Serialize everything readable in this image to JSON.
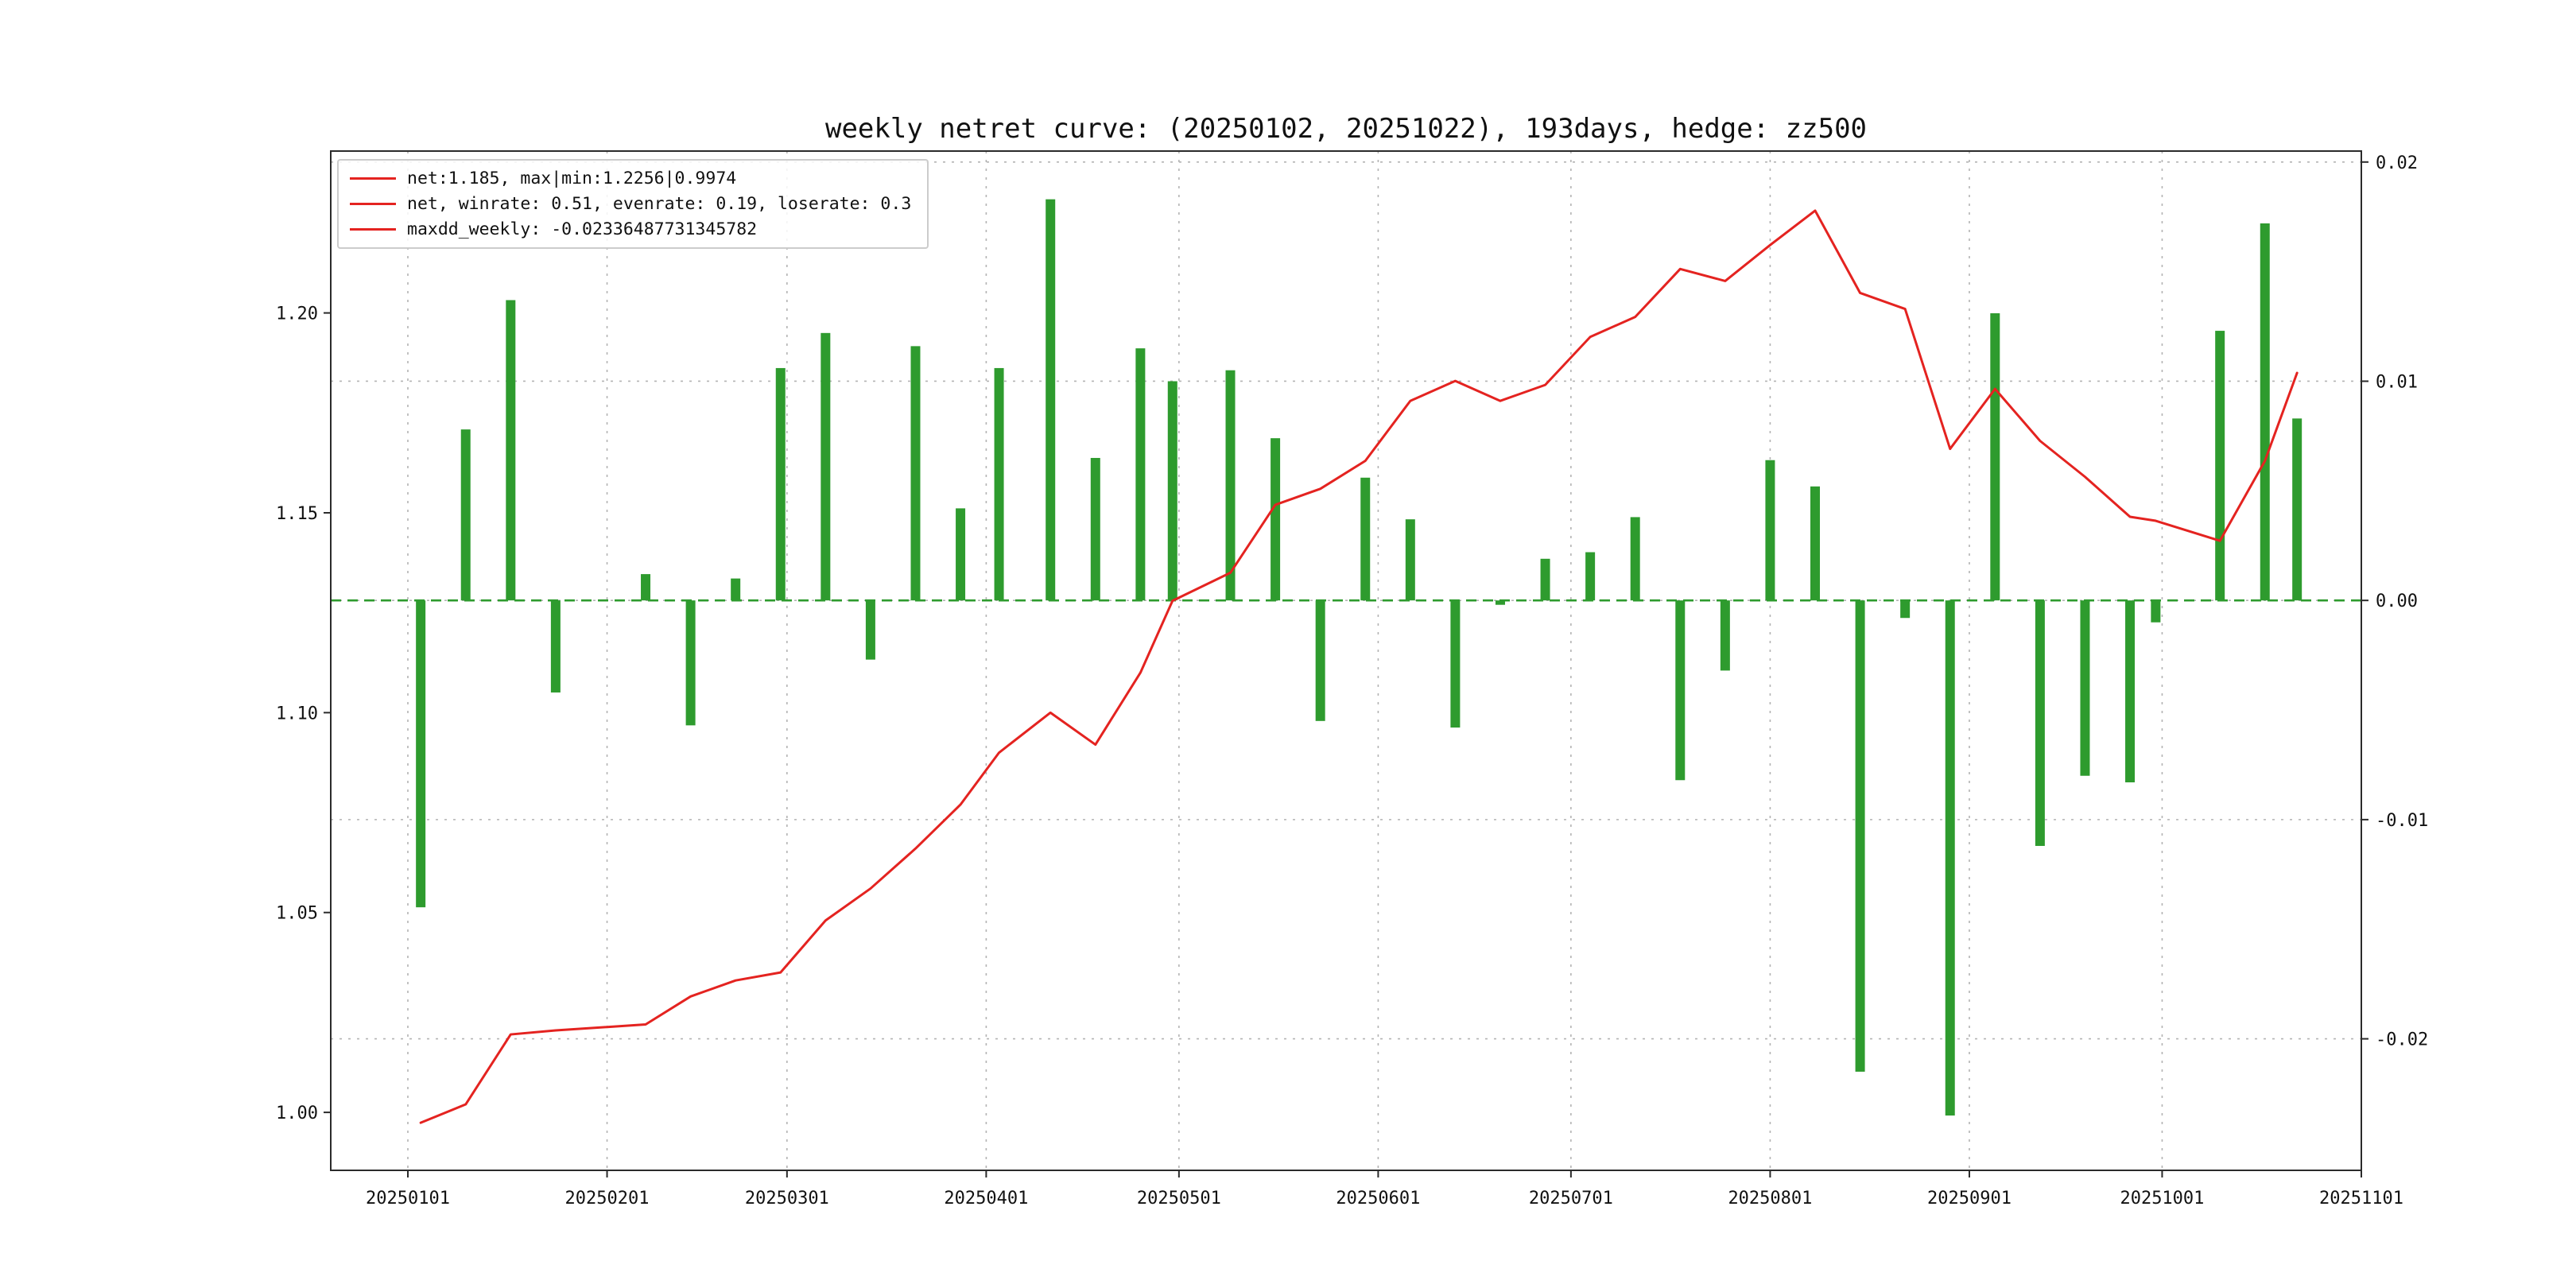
{
  "colors": {
    "line_red": "#e42320",
    "bar_green": "#2e9b2e",
    "zero_line_green": "#2e9b2e",
    "grid": "#b3b3b3",
    "spine": "#2b2b2b",
    "text": "#111111",
    "background": "#ffffff"
  },
  "legend": {
    "entries": [
      {
        "label": "net:1.185, max|min:1.2256|0.9974"
      },
      {
        "label": "net, winrate: 0.51, evenrate: 0.19, loserate: 0.3"
      },
      {
        "label": "maxdd_weekly: -0.02336487731345782"
      }
    ]
  },
  "stats": {
    "net": 1.185,
    "max": 1.2256,
    "min": 0.9974,
    "winrate": 0.51,
    "evenrate": 0.19,
    "loserate": 0.3,
    "maxdd_weekly": -0.02336487731345782,
    "days": 193,
    "start": "20250102",
    "end": "20251022",
    "hedge": "zz500"
  },
  "chart_data": {
    "type": "combo",
    "title": "weekly netret curve: (20250102, 20251022), 193days, hedge: zz500",
    "legend_position": "upper-left",
    "grid": true,
    "x_axis": {
      "range": [
        "20241220",
        "20251101"
      ],
      "tick_labels": [
        "20250101",
        "20250201",
        "20250301",
        "20250401",
        "20250501",
        "20250601",
        "20250701",
        "20250801",
        "20250901",
        "20251001",
        "20251101"
      ]
    },
    "left_axis": {
      "range": [
        0.9855,
        1.2405
      ],
      "ticks": [
        1.2,
        1.15,
        1.1,
        1.05,
        1.0
      ],
      "tick_labels": [
        "1.20",
        "1.15",
        "1.10",
        "1.05",
        "1.00"
      ]
    },
    "right_axis": {
      "range": [
        -0.026,
        0.0205
      ],
      "ticks": [
        0.02,
        0.01,
        0.0,
        -0.01,
        -0.02
      ],
      "tick_labels": [
        "0.02",
        "0.01",
        "0.00",
        "-0.01",
        "-0.02"
      ]
    },
    "zero_line": {
      "axis": "right",
      "value": 0,
      "style": "dashed"
    },
    "x_dates": [
      "20250103",
      "20250110",
      "20250117",
      "20250124",
      "20250207",
      "20250214",
      "20250221",
      "20250228",
      "20250307",
      "20250314",
      "20250321",
      "20250328",
      "20250403",
      "20250411",
      "20250418",
      "20250425",
      "20250430",
      "20250509",
      "20250516",
      "20250523",
      "20250530",
      "20250606",
      "20250613",
      "20250620",
      "20250627",
      "20250704",
      "20250711",
      "20250718",
      "20250725",
      "20250801",
      "20250808",
      "20250815",
      "20250822",
      "20250829",
      "20250905",
      "20250912",
      "20250919",
      "20250926",
      "20250930",
      "20251010",
      "20251017",
      "20251022"
    ],
    "series": [
      {
        "name": "net cumulative curve",
        "type": "line",
        "axis": "left",
        "values": [
          0.9974,
          1.002,
          1.0195,
          1.0205,
          1.022,
          1.029,
          1.033,
          1.035,
          1.048,
          1.056,
          1.066,
          1.077,
          1.09,
          1.1,
          1.092,
          1.11,
          1.128,
          1.135,
          1.152,
          1.156,
          1.163,
          1.178,
          1.183,
          1.178,
          1.182,
          1.194,
          1.199,
          1.211,
          1.208,
          1.217,
          1.2256,
          1.205,
          1.201,
          1.166,
          1.181,
          1.168,
          1.159,
          1.149,
          1.148,
          1.143,
          1.163,
          1.185
        ]
      },
      {
        "name": "weekly return bars",
        "type": "bar",
        "axis": "right",
        "values": [
          -0.014,
          0.0078,
          0.0137,
          -0.0042,
          0.0012,
          -0.0057,
          0.001,
          0.0106,
          0.0122,
          -0.0027,
          0.0116,
          0.0042,
          0.0106,
          0.0183,
          0.0065,
          0.0115,
          0.01,
          0.0105,
          0.0074,
          -0.0055,
          0.0056,
          0.0037,
          -0.0058,
          -0.0002,
          0.0019,
          0.0022,
          0.0038,
          -0.0082,
          -0.0032,
          0.0064,
          0.0052,
          -0.0215,
          -0.0008,
          -0.0235,
          0.0131,
          -0.0112,
          -0.008,
          -0.0083,
          -0.001,
          0.0123,
          0.0172,
          0.0083
        ]
      }
    ]
  }
}
